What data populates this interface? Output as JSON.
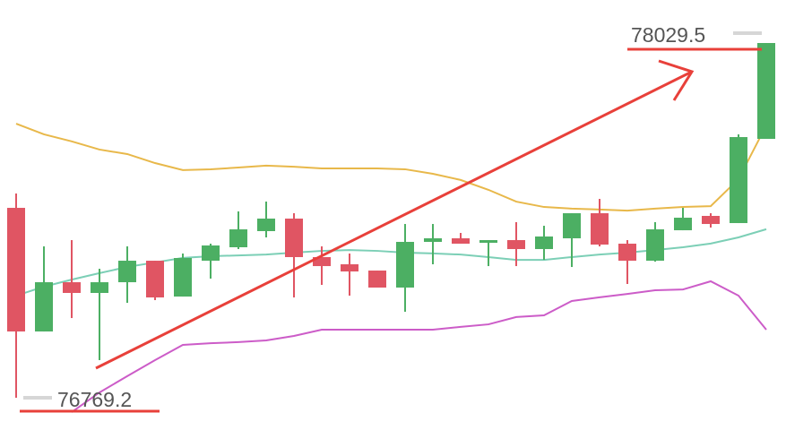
{
  "chart_data": {
    "type": "candlestick",
    "open": [
      77443.9,
      77004.7,
      77179.7,
      77141.6,
      77179.7,
      77256.1,
      77128.8,
      77256.1,
      77303.9,
      77361.2,
      77405.7,
      77268.9,
      77243.4,
      77221.1,
      77160.7,
      77323.0,
      77335.7,
      77319.8,
      77329.3,
      77297.5,
      77335.7,
      77424.8,
      77316.6,
      77256.1,
      77364.3,
      77415.3,
      77389.8,
      77689.0
    ],
    "high": [
      77494.8,
      77307.0,
      77329.3,
      77227.5,
      77307.0,
      77256.1,
      77281.6,
      77316.6,
      77431.2,
      77466.2,
      77424.8,
      77307.0,
      77281.6,
      77221.1,
      77386.6,
      77386.6,
      77354.8,
      77329.3,
      77393.0,
      77380.2,
      77424.8,
      77475.7,
      77329.3,
      77393.0,
      77443.9,
      77424.8,
      77704.9,
      78029.5
    ],
    "low": [
      76769.2,
      77004.7,
      77052.4,
      76902.9,
      77106.5,
      77116.1,
      77128.8,
      77192.5,
      77297.5,
      77338.9,
      77125.6,
      77170.2,
      77132.0,
      77160.7,
      77074.7,
      77243.4,
      77316.6,
      77237.0,
      77237.0,
      77259.3,
      77233.8,
      77307.0,
      77173.4,
      77252.9,
      77364.3,
      77373.9,
      77389.8,
      77689.0
    ],
    "close": [
      77004.7,
      77179.7,
      77141.6,
      77179.7,
      77256.1,
      77125.6,
      77265.7,
      77310.2,
      77367.5,
      77405.7,
      77268.9,
      77237.0,
      77217.9,
      77160.7,
      77323.0,
      77335.7,
      77316.6,
      77329.3,
      77297.5,
      77342.1,
      77424.8,
      77313.4,
      77256.1,
      77367.5,
      77408.9,
      77386.6,
      77695.3,
      78029.5
    ],
    "up_color": "#4caf63",
    "down_color": "#e05563",
    "lines": [
      {
        "color": "#e8b84a",
        "values": [
          77743,
          77705,
          77680,
          77651,
          77635,
          77603,
          77578,
          77581,
          77587,
          77594,
          77590,
          77584,
          77584,
          77584,
          77581,
          77565,
          77543,
          77508,
          77466,
          77447,
          77441,
          77438,
          77434,
          77441,
          77447,
          77450,
          77546,
          77737
        ]
      },
      {
        "color": "#7ccfb6",
        "values": [
          77132,
          77164,
          77189,
          77212,
          77234,
          77250,
          77266,
          77272,
          77275,
          77278,
          77285,
          77291,
          77294,
          77291,
          77285,
          77282,
          77278,
          77269,
          77259,
          77259,
          77269,
          77278,
          77285,
          77294,
          77304,
          77317,
          77339,
          77368
        ]
      },
      {
        "color": "#cc5cc8",
        "values": [
          null,
          null,
          76718,
          76788,
          76846,
          76903,
          76957,
          76963,
          76967,
          76973,
          76989,
          77011,
          77011,
          77011,
          77011,
          77011,
          77021,
          77030,
          77056,
          77062,
          77113,
          77126,
          77138,
          77151,
          77154,
          77183,
          77132,
          77011
        ]
      }
    ],
    "ylim": [
      76654.7,
      78182.3
    ]
  }
}
